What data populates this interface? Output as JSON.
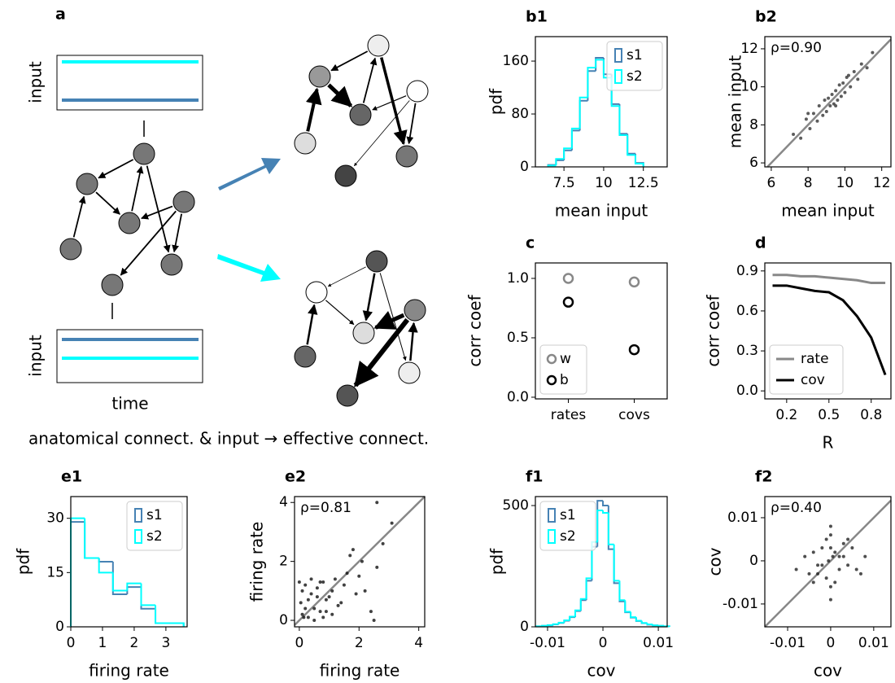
{
  "diagram": {
    "panel": "a",
    "input_label": "input",
    "time_label": "time",
    "caption": "anatomical connect. & input → effective connect."
  },
  "chart_data": [
    {
      "type": "histogram",
      "panel": "b1",
      "xlabel": "mean input",
      "ylabel": "pdf",
      "xlim": [
        5.7,
        14.0
      ],
      "ylim": [
        0,
        197
      ],
      "xticks": [
        7.5,
        10,
        12.5
      ],
      "yticks": [
        0,
        80,
        160
      ],
      "legend": "upper right",
      "bins": [
        6.5,
        7,
        7.5,
        8,
        8.5,
        9,
        9.5,
        10,
        10.5,
        11,
        11.5,
        12,
        12.5
      ],
      "series": [
        {
          "name": "s1",
          "color": "#4682b4",
          "values": [
            3,
            10,
            25,
            55,
            100,
            145,
            165,
            140,
            95,
            50,
            20,
            6
          ]
        },
        {
          "name": "s2",
          "color": "#00ffff",
          "values": [
            2,
            12,
            28,
            58,
            105,
            150,
            162,
            135,
            92,
            48,
            18,
            5
          ]
        }
      ]
    },
    {
      "type": "scatter",
      "panel": "b2",
      "xlabel": "mean input",
      "ylabel": "mean input",
      "annotation": "ρ=0.90",
      "xlim": [
        5.65,
        12.5
      ],
      "ylim": [
        5.79,
        12.64
      ],
      "xticks": [
        6,
        8,
        10,
        12
      ],
      "yticks": [
        6,
        8,
        10,
        12
      ],
      "color": "#333333",
      "diagonal": true,
      "diagonal_color": "#888888",
      "x": [
        7.2,
        7.6,
        7.9,
        8.1,
        8.3,
        8.5,
        8.6,
        8.8,
        8.9,
        9.0,
        9.1,
        9.2,
        9.3,
        9.4,
        9.5,
        9.6,
        9.7,
        9.8,
        9.9,
        10.0,
        10.1,
        10.3,
        10.5,
        10.7,
        10.9,
        11.2,
        11.5,
        8.0,
        9.5,
        10.2
      ],
      "values": [
        7.5,
        7.3,
        8.3,
        7.8,
        8.6,
        8.2,
        9.0,
        8.5,
        9.3,
        8.7,
        9.4,
        9.0,
        9.6,
        9.1,
        9.8,
        9.3,
        10.1,
        9.5,
        10.2,
        9.7,
        10.5,
        10.0,
        10.8,
        10.4,
        11.2,
        11.0,
        11.8,
        8.6,
        9.0,
        10.6
      ]
    },
    {
      "type": "dot",
      "panel": "c",
      "ylabel": "corr coef",
      "categories": [
        "rates",
        "covs"
      ],
      "ylim": [
        -0.014,
        1.13
      ],
      "yticks": [
        {
          "value": 0,
          "label": "0.0"
        },
        0.5,
        {
          "value": 1,
          "label": "1.0"
        }
      ],
      "legend": "lower left",
      "series": [
        {
          "name": "w",
          "color": "#888888",
          "values": [
            1.0,
            0.97
          ]
        },
        {
          "name": "b",
          "color": "#000000",
          "values": [
            0.8,
            0.4
          ]
        }
      ]
    },
    {
      "type": "line",
      "panel": "d",
      "xlabel": "R",
      "ylabel": "corr coef",
      "xlim": [
        0.045,
        0.94
      ],
      "ylim": [
        -0.06,
        0.96
      ],
      "xticks": [
        0.2,
        0.5,
        0.8
      ],
      "yticks": [
        {
          "value": 0,
          "label": "0.0"
        },
        0.3,
        0.6,
        0.9
      ],
      "legend": "lower left",
      "x": [
        0.1,
        0.2,
        0.3,
        0.4,
        0.5,
        0.6,
        0.7,
        0.8,
        0.9
      ],
      "series": [
        {
          "name": "rate",
          "color": "#888888",
          "values": [
            0.87,
            0.87,
            0.86,
            0.86,
            0.85,
            0.84,
            0.83,
            0.81,
            0.81
          ]
        },
        {
          "name": "cov",
          "color": "#000000",
          "values": [
            0.79,
            0.79,
            0.77,
            0.75,
            0.74,
            0.68,
            0.56,
            0.4,
            0.12
          ]
        }
      ]
    },
    {
      "type": "histogram",
      "panel": "e1",
      "xlabel": "firing rate",
      "ylabel": "pdf",
      "xlim": [
        0,
        3.67
      ],
      "ylim": [
        0,
        36
      ],
      "xticks": [
        0,
        1,
        2,
        3
      ],
      "yticks": [
        0,
        15,
        30
      ],
      "legend": "upper right",
      "bins": [
        0,
        0.44,
        0.89,
        1.33,
        1.78,
        2.22,
        2.67,
        3.11,
        3.56
      ],
      "series": [
        {
          "name": "s1",
          "color": "#4682b4",
          "values": [
            29,
            19,
            18,
            9,
            11,
            5,
            1,
            1
          ]
        },
        {
          "name": "s2",
          "color": "#00ffff",
          "values": [
            30,
            19,
            15,
            10,
            12,
            6,
            1,
            1
          ]
        }
      ]
    },
    {
      "type": "scatter",
      "panel": "e2",
      "xlabel": "firing rate",
      "ylabel": "firing rate",
      "annotation": "ρ=0.81",
      "xlim": [
        -0.16,
        4.2
      ],
      "ylim": [
        -0.22,
        4.2
      ],
      "xticks": [
        0,
        2,
        4
      ],
      "yticks": [
        0,
        2,
        4
      ],
      "color": "#111111",
      "diagonal": true,
      "diagonal_color": "#888888",
      "x": [
        0.05,
        0.1,
        0.2,
        0.3,
        0.4,
        0.5,
        0.6,
        0.7,
        0.8,
        0.9,
        1.0,
        1.1,
        1.2,
        1.3,
        0.1,
        0.3,
        0.5,
        0.7,
        0.9,
        1.1,
        0.2,
        0.4,
        0.6,
        0.8,
        1.4,
        1.6,
        1.8,
        1.9,
        2.0,
        2.1,
        2.2,
        2.4,
        2.6,
        1.7,
        1.5,
        2.8,
        3.1,
        2.5,
        0.0,
        0.15,
        2.6
      ],
      "values": [
        0.6,
        0.2,
        1.2,
        0.1,
        0.9,
        0.4,
        1.1,
        0.3,
        1.3,
        0.7,
        0.8,
        0.2,
        1.4,
        0.5,
        1.0,
        0.7,
        0.0,
        1.3,
        0.3,
        1.0,
        0.4,
        1.4,
        0.8,
        0.1,
        0.6,
        1.6,
        2.4,
        0.9,
        1.5,
        2.0,
        1.0,
        0.3,
        1.8,
        2.2,
        1.2,
        2.6,
        3.3,
        0.0,
        1.3,
        0.1,
        4.0
      ]
    },
    {
      "type": "histogram",
      "panel": "f1",
      "xlabel": "cov",
      "ylabel": "pdf",
      "xlim": [
        -0.0122,
        0.0116
      ],
      "ylim": [
        0,
        537
      ],
      "xticks": [
        -0.01,
        0,
        0.01
      ],
      "yticks": [
        0,
        500
      ],
      "legend": "upper left",
      "bins": [
        -0.012,
        -0.011,
        -0.01,
        -0.009,
        -0.008,
        -0.007,
        -0.006,
        -0.005,
        -0.004,
        -0.003,
        -0.002,
        -0.001,
        0,
        0.001,
        0.002,
        0.003,
        0.004,
        0.005,
        0.006,
        0.007,
        0.008,
        0.009,
        0.01,
        0.011,
        0.012
      ],
      "series": [
        {
          "name": "s1",
          "color": "#4682b4",
          "values": [
            2,
            4,
            6,
            10,
            16,
            25,
            40,
            65,
            110,
            190,
            330,
            520,
            500,
            320,
            180,
            105,
            60,
            38,
            24,
            15,
            9,
            6,
            4,
            2
          ]
        },
        {
          "name": "s2",
          "color": "#00ffff",
          "values": [
            2,
            4,
            7,
            11,
            17,
            27,
            42,
            68,
            115,
            200,
            350,
            480,
            470,
            340,
            190,
            110,
            62,
            40,
            25,
            16,
            10,
            6,
            4,
            2
          ]
        }
      ]
    },
    {
      "type": "scatter",
      "panel": "f2",
      "xlabel": "cov",
      "ylabel": "cov",
      "annotation": "ρ=0.40",
      "xlim": [
        -0.0153,
        0.014
      ],
      "ylim": [
        -0.0153,
        0.0149
      ],
      "xticks": [
        -0.01,
        0,
        0.01
      ],
      "yticks": [
        -0.01,
        0,
        0.01
      ],
      "color": "#222222",
      "diagonal": true,
      "diagonal_color": "#888888",
      "x": [
        -0.008,
        -0.006,
        -0.005,
        -0.004,
        -0.003,
        -0.002,
        -0.001,
        0,
        0.001,
        0.002,
        0.003,
        0.004,
        0.005,
        0.006,
        0.008,
        -0.003,
        -0.001,
        0,
        0.001,
        0.003,
        0,
        0,
        0,
        -0.0005,
        0.0005,
        -0.002,
        0.002,
        -0.004,
        0.004,
        0.007
      ],
      "values": [
        -0.002,
        0.001,
        -0.003,
        0.002,
        -0.001,
        0.003,
        -0.004,
        0.008,
        0.002,
        -0.002,
        0.001,
        -0.001,
        0.003,
        -0.002,
        0.001,
        -0.003,
        0.005,
        -0.006,
        -0.005,
        0.004,
        0.003,
        -0.009,
        0.006,
        0,
        0.001,
        -0.001,
        0.001,
        -0.005,
        0.005,
        -0.003
      ]
    }
  ]
}
